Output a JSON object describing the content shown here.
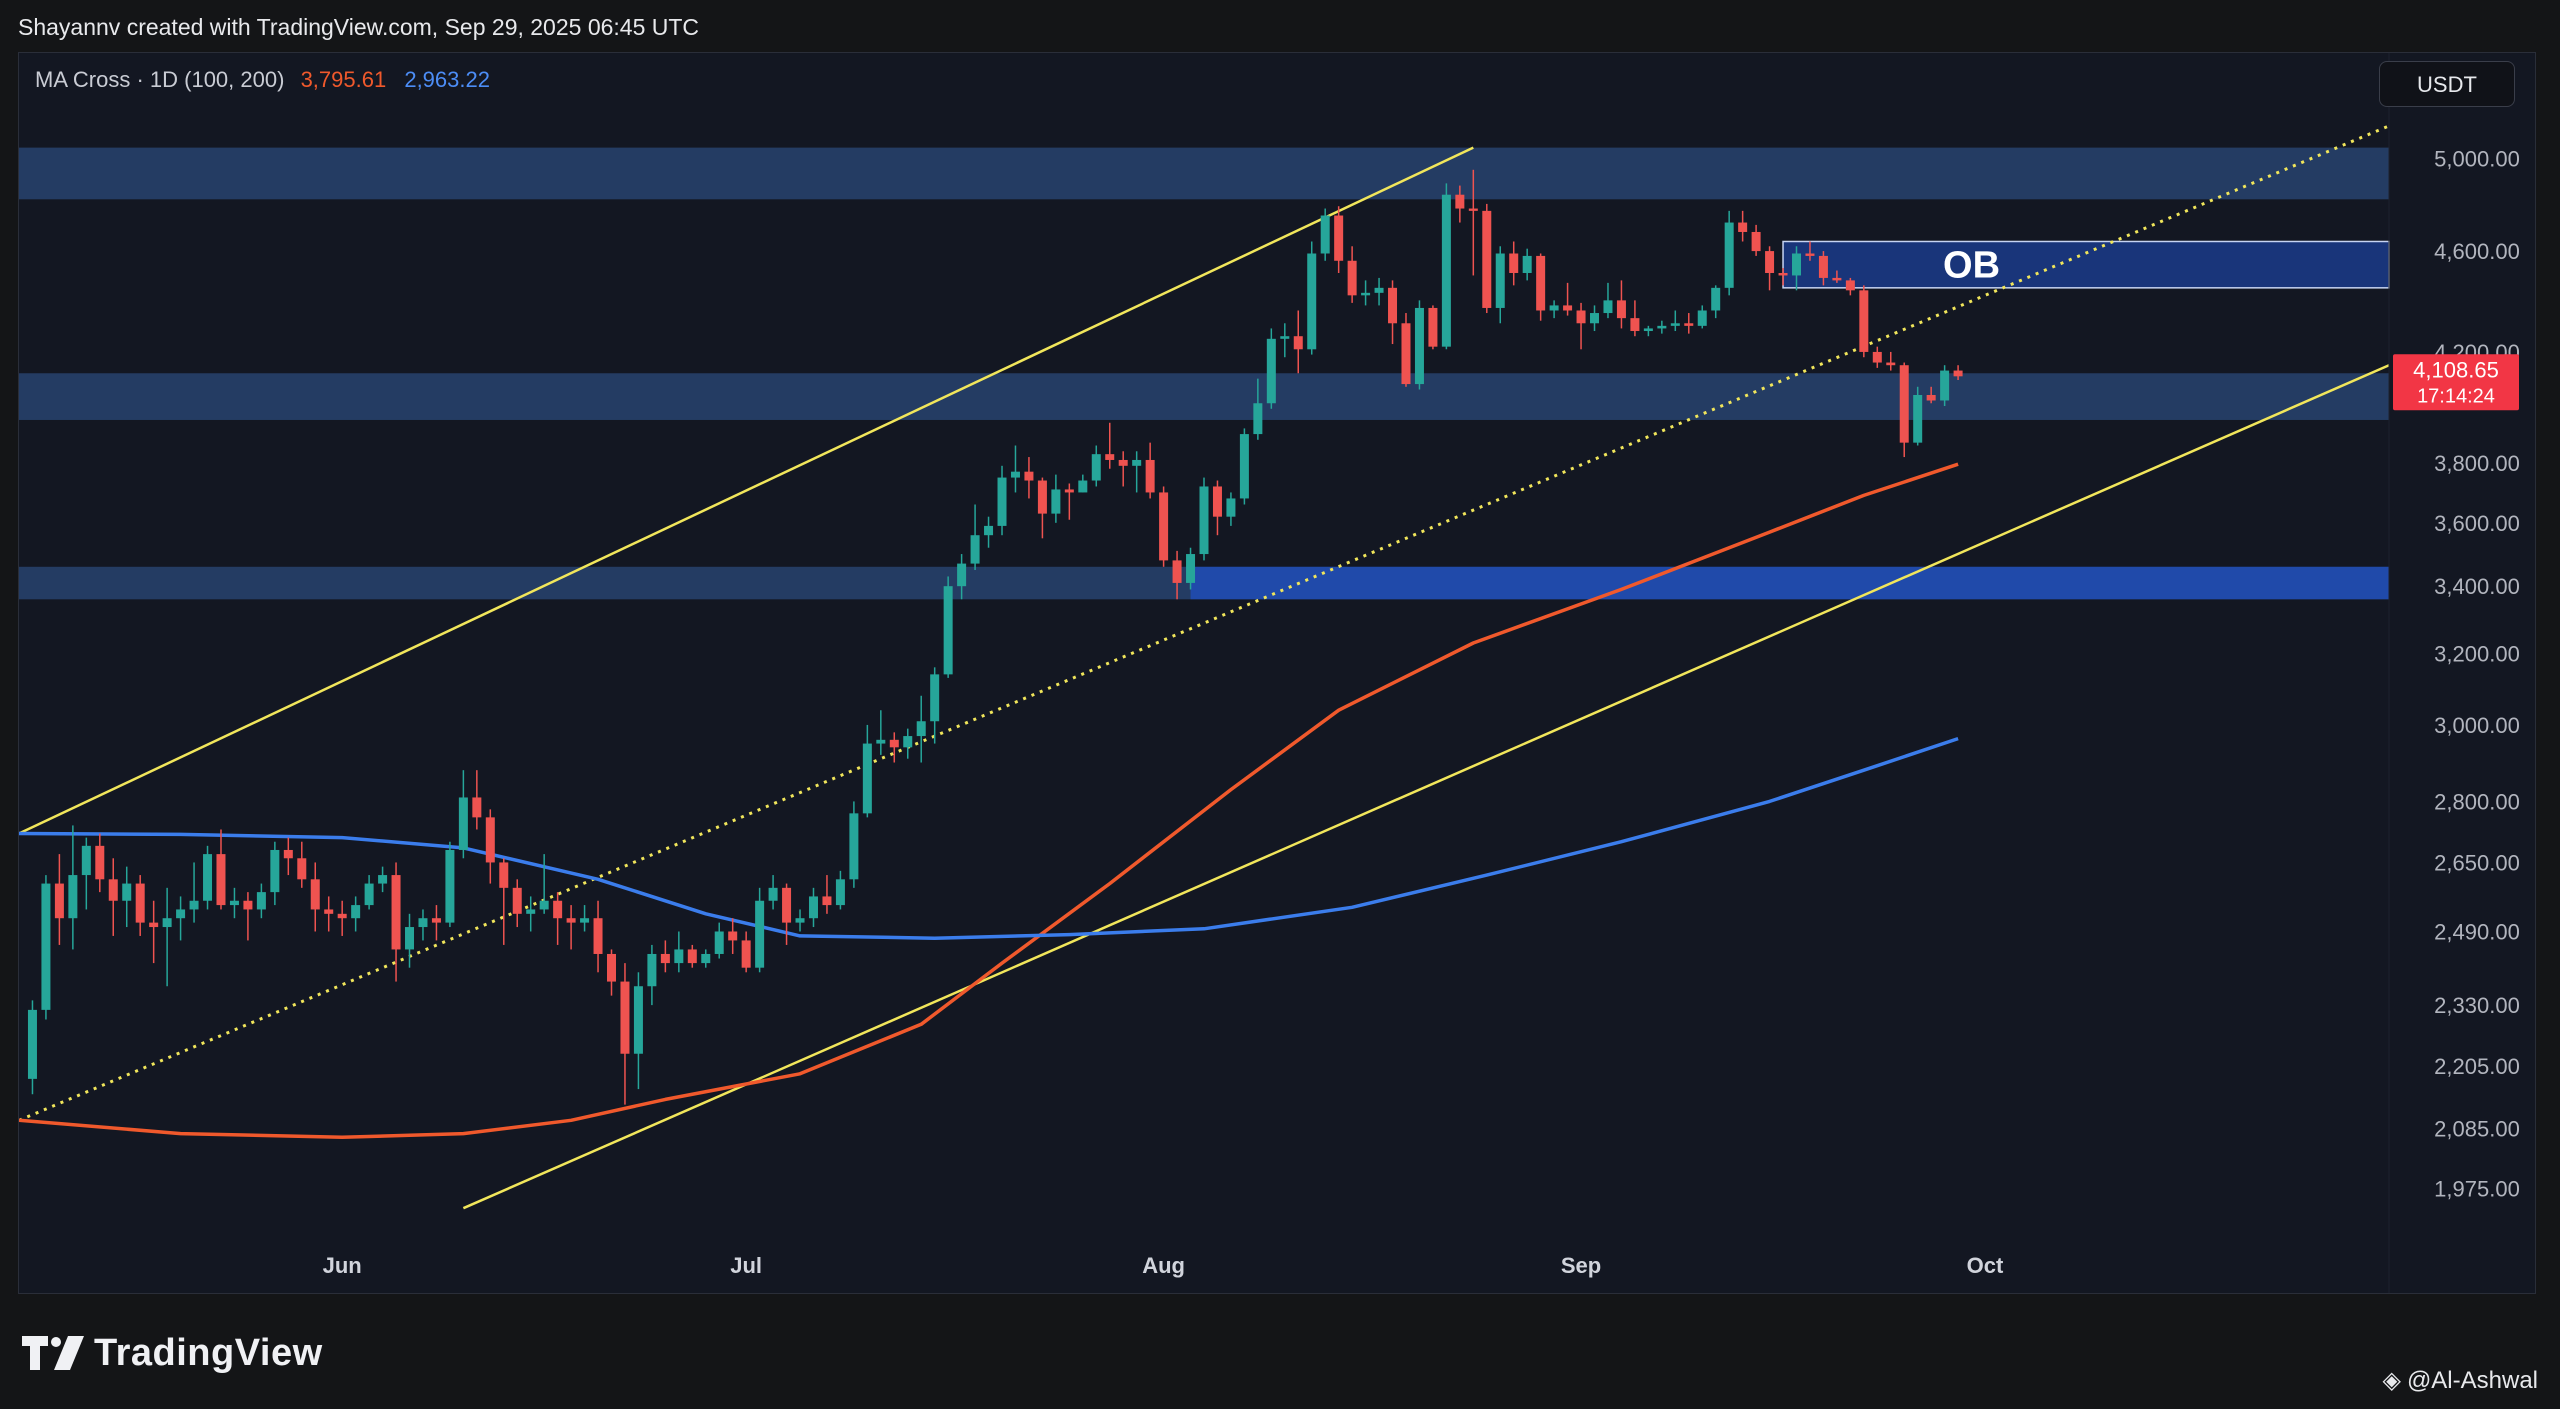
{
  "header": {
    "credit": "Shayannv created with TradingView.com, Sep 29, 2025 06:45 UTC"
  },
  "legend": {
    "label": "MA Cross · 1D (100, 200)",
    "ma100_value": "3,795.61",
    "ma200_value": "2,963.22"
  },
  "currency_button": "USDT",
  "footer": {
    "brand": "TradingView",
    "author": "@Al-Ashwal"
  },
  "colors": {
    "background": "#131722",
    "bull": "#26a69a",
    "bear": "#ef5350",
    "ma100": "#f0592c",
    "ma200": "#3b7dec",
    "channel": "#f1e65b",
    "zone": "#2b4a7a",
    "ob_zone": "#1f4fc2"
  },
  "chart_data": {
    "type": "candlestick",
    "symbol_currency": "USDT",
    "timeframe": "1D",
    "x_ticks": [
      "Jun",
      "Jul",
      "Aug",
      "Sep",
      "Oct"
    ],
    "y_ticks": [
      "5,000.00",
      "4,600.00",
      "4,200.00",
      "3,800.00",
      "3,600.00",
      "3,400.00",
      "3,200.00",
      "3,000.00",
      "2,800.00",
      "2,650.00",
      "2,490.00",
      "2,330.00",
      "2,205.00",
      "2,085.00",
      "1,975.00"
    ],
    "y_scale": "log",
    "y_range": [
      1880,
      5500
    ],
    "x_range": [
      "2025-05-08",
      "2025-10-31"
    ],
    "last_price": {
      "value": "4,108.65",
      "countdown": "17:14:24"
    },
    "candles": [
      [
        "2025-05-09",
        2180,
        2340,
        2150,
        2320
      ],
      [
        "2025-05-10",
        2320,
        2620,
        2300,
        2600
      ],
      [
        "2025-05-11",
        2600,
        2670,
        2460,
        2520
      ],
      [
        "2025-05-12",
        2520,
        2740,
        2450,
        2620
      ],
      [
        "2025-05-13",
        2620,
        2710,
        2540,
        2690
      ],
      [
        "2025-05-14",
        2690,
        2720,
        2580,
        2610
      ],
      [
        "2025-05-15",
        2610,
        2660,
        2480,
        2560
      ],
      [
        "2025-05-16",
        2560,
        2640,
        2500,
        2600
      ],
      [
        "2025-05-17",
        2600,
        2620,
        2480,
        2510
      ],
      [
        "2025-05-18",
        2510,
        2560,
        2420,
        2500
      ],
      [
        "2025-05-19",
        2500,
        2590,
        2370,
        2520
      ],
      [
        "2025-05-20",
        2520,
        2570,
        2470,
        2540
      ],
      [
        "2025-05-21",
        2540,
        2650,
        2510,
        2560
      ],
      [
        "2025-05-22",
        2560,
        2690,
        2540,
        2670
      ],
      [
        "2025-05-23",
        2670,
        2730,
        2540,
        2550
      ],
      [
        "2025-05-24",
        2550,
        2590,
        2520,
        2560
      ],
      [
        "2025-05-25",
        2560,
        2580,
        2470,
        2540
      ],
      [
        "2025-05-26",
        2540,
        2600,
        2520,
        2580
      ],
      [
        "2025-05-27",
        2580,
        2700,
        2550,
        2680
      ],
      [
        "2025-05-28",
        2680,
        2710,
        2620,
        2660
      ],
      [
        "2025-05-29",
        2660,
        2700,
        2590,
        2610
      ],
      [
        "2025-05-30",
        2610,
        2650,
        2490,
        2540
      ],
      [
        "2025-05-31",
        2540,
        2570,
        2490,
        2530
      ],
      [
        "2025-06-01",
        2530,
        2560,
        2480,
        2520
      ],
      [
        "2025-06-02",
        2520,
        2570,
        2490,
        2550
      ],
      [
        "2025-06-03",
        2550,
        2620,
        2540,
        2600
      ],
      [
        "2025-06-04",
        2600,
        2640,
        2580,
        2620
      ],
      [
        "2025-06-05",
        2620,
        2650,
        2380,
        2450
      ],
      [
        "2025-06-06",
        2450,
        2530,
        2410,
        2500
      ],
      [
        "2025-06-07",
        2500,
        2540,
        2470,
        2520
      ],
      [
        "2025-06-08",
        2520,
        2550,
        2470,
        2510
      ],
      [
        "2025-06-09",
        2510,
        2700,
        2500,
        2680
      ],
      [
        "2025-06-10",
        2680,
        2880,
        2660,
        2810
      ],
      [
        "2025-06-11",
        2810,
        2880,
        2730,
        2760
      ],
      [
        "2025-06-12",
        2760,
        2780,
        2600,
        2650
      ],
      [
        "2025-06-13",
        2650,
        2660,
        2460,
        2590
      ],
      [
        "2025-06-14",
        2590,
        2610,
        2500,
        2530
      ],
      [
        "2025-06-15",
        2530,
        2570,
        2490,
        2540
      ],
      [
        "2025-06-16",
        2540,
        2670,
        2530,
        2560
      ],
      [
        "2025-06-17",
        2560,
        2580,
        2460,
        2520
      ],
      [
        "2025-06-18",
        2520,
        2550,
        2450,
        2510
      ],
      [
        "2025-06-19",
        2510,
        2550,
        2490,
        2520
      ],
      [
        "2025-06-20",
        2520,
        2560,
        2400,
        2440
      ],
      [
        "2025-06-21",
        2440,
        2450,
        2350,
        2380
      ],
      [
        "2025-06-22",
        2380,
        2420,
        2130,
        2230
      ],
      [
        "2025-06-23",
        2230,
        2400,
        2160,
        2370
      ],
      [
        "2025-06-24",
        2370,
        2460,
        2330,
        2440
      ],
      [
        "2025-06-25",
        2440,
        2470,
        2400,
        2420
      ],
      [
        "2025-06-26",
        2420,
        2490,
        2400,
        2450
      ],
      [
        "2025-06-27",
        2450,
        2460,
        2410,
        2420
      ],
      [
        "2025-06-28",
        2420,
        2450,
        2410,
        2440
      ],
      [
        "2025-06-29",
        2440,
        2510,
        2430,
        2490
      ],
      [
        "2025-06-30",
        2490,
        2520,
        2440,
        2470
      ],
      [
        "2025-07-01",
        2470,
        2490,
        2400,
        2410
      ],
      [
        "2025-07-02",
        2410,
        2590,
        2400,
        2560
      ],
      [
        "2025-07-03",
        2560,
        2620,
        2540,
        2590
      ],
      [
        "2025-07-04",
        2590,
        2600,
        2460,
        2510
      ],
      [
        "2025-07-05",
        2510,
        2540,
        2490,
        2520
      ],
      [
        "2025-07-06",
        2520,
        2590,
        2500,
        2570
      ],
      [
        "2025-07-07",
        2570,
        2620,
        2530,
        2550
      ],
      [
        "2025-07-08",
        2550,
        2630,
        2540,
        2610
      ],
      [
        "2025-07-09",
        2610,
        2800,
        2590,
        2770
      ],
      [
        "2025-07-10",
        2770,
        3000,
        2760,
        2950
      ],
      [
        "2025-07-11",
        2950,
        3040,
        2920,
        2960
      ],
      [
        "2025-07-12",
        2960,
        2980,
        2900,
        2940
      ],
      [
        "2025-07-13",
        2940,
        2990,
        2910,
        2970
      ],
      [
        "2025-07-14",
        2970,
        3080,
        2900,
        3010
      ],
      [
        "2025-07-15",
        3010,
        3160,
        2950,
        3140
      ],
      [
        "2025-07-16",
        3140,
        3430,
        3130,
        3400
      ],
      [
        "2025-07-17",
        3400,
        3500,
        3360,
        3470
      ],
      [
        "2025-07-18",
        3470,
        3660,
        3450,
        3560
      ],
      [
        "2025-07-19",
        3560,
        3620,
        3520,
        3590
      ],
      [
        "2025-07-20",
        3590,
        3790,
        3560,
        3750
      ],
      [
        "2025-07-21",
        3750,
        3860,
        3700,
        3770
      ],
      [
        "2025-07-22",
        3770,
        3820,
        3680,
        3740
      ],
      [
        "2025-07-23",
        3740,
        3750,
        3550,
        3630
      ],
      [
        "2025-07-24",
        3630,
        3760,
        3600,
        3710
      ],
      [
        "2025-07-25",
        3710,
        3730,
        3610,
        3700
      ],
      [
        "2025-07-26",
        3700,
        3760,
        3700,
        3740
      ],
      [
        "2025-07-27",
        3740,
        3860,
        3720,
        3830
      ],
      [
        "2025-07-28",
        3830,
        3940,
        3780,
        3810
      ],
      [
        "2025-07-29",
        3810,
        3840,
        3720,
        3790
      ],
      [
        "2025-07-30",
        3790,
        3840,
        3700,
        3810
      ],
      [
        "2025-07-31",
        3810,
        3870,
        3680,
        3700
      ],
      [
        "2025-08-01",
        3700,
        3720,
        3460,
        3480
      ],
      [
        "2025-08-02",
        3480,
        3510,
        3360,
        3410
      ],
      [
        "2025-08-03",
        3410,
        3520,
        3390,
        3500
      ],
      [
        "2025-08-04",
        3500,
        3750,
        3480,
        3720
      ],
      [
        "2025-08-05",
        3720,
        3740,
        3560,
        3620
      ],
      [
        "2025-08-06",
        3620,
        3700,
        3590,
        3680
      ],
      [
        "2025-08-07",
        3680,
        3920,
        3660,
        3900
      ],
      [
        "2025-08-08",
        3900,
        4100,
        3880,
        4010
      ],
      [
        "2025-08-09",
        4010,
        4290,
        3990,
        4250
      ],
      [
        "2025-08-10",
        4250,
        4310,
        4180,
        4260
      ],
      [
        "2025-08-11",
        4260,
        4360,
        4120,
        4210
      ],
      [
        "2025-08-12",
        4210,
        4640,
        4190,
        4590
      ],
      [
        "2025-08-13",
        4590,
        4780,
        4560,
        4750
      ],
      [
        "2025-08-14",
        4750,
        4790,
        4510,
        4560
      ],
      [
        "2025-08-15",
        4560,
        4620,
        4390,
        4420
      ],
      [
        "2025-08-16",
        4420,
        4480,
        4380,
        4430
      ],
      [
        "2025-08-17",
        4430,
        4490,
        4380,
        4450
      ],
      [
        "2025-08-18",
        4450,
        4480,
        4230,
        4310
      ],
      [
        "2025-08-19",
        4310,
        4350,
        4070,
        4080
      ],
      [
        "2025-08-20",
        4080,
        4400,
        4060,
        4370
      ],
      [
        "2025-08-21",
        4370,
        4380,
        4210,
        4220
      ],
      [
        "2025-08-22",
        4220,
        4890,
        4210,
        4840
      ],
      [
        "2025-08-23",
        4840,
        4880,
        4720,
        4780
      ],
      [
        "2025-08-24",
        4780,
        4950,
        4500,
        4770
      ],
      [
        "2025-08-25",
        4770,
        4800,
        4350,
        4370
      ],
      [
        "2025-08-26",
        4370,
        4620,
        4310,
        4590
      ],
      [
        "2025-08-27",
        4590,
        4640,
        4460,
        4510
      ],
      [
        "2025-08-28",
        4510,
        4610,
        4480,
        4580
      ],
      [
        "2025-08-29",
        4580,
        4590,
        4320,
        4360
      ],
      [
        "2025-08-30",
        4360,
        4400,
        4330,
        4380
      ],
      [
        "2025-08-31",
        4380,
        4470,
        4340,
        4360
      ],
      [
        "2025-09-01",
        4360,
        4390,
        4210,
        4310
      ],
      [
        "2025-09-02",
        4310,
        4380,
        4280,
        4350
      ],
      [
        "2025-09-03",
        4350,
        4470,
        4330,
        4400
      ],
      [
        "2025-09-04",
        4400,
        4480,
        4290,
        4330
      ],
      [
        "2025-09-05",
        4330,
        4400,
        4260,
        4280
      ],
      [
        "2025-09-06",
        4280,
        4300,
        4260,
        4290
      ],
      [
        "2025-09-07",
        4290,
        4320,
        4270,
        4300
      ],
      [
        "2025-09-08",
        4300,
        4360,
        4280,
        4310
      ],
      [
        "2025-09-09",
        4310,
        4350,
        4270,
        4300
      ],
      [
        "2025-09-10",
        4300,
        4380,
        4290,
        4360
      ],
      [
        "2025-09-11",
        4360,
        4460,
        4330,
        4450
      ],
      [
        "2025-09-12",
        4450,
        4770,
        4420,
        4720
      ],
      [
        "2025-09-13",
        4720,
        4770,
        4640,
        4680
      ],
      [
        "2025-09-14",
        4680,
        4710,
        4580,
        4600
      ],
      [
        "2025-09-15",
        4600,
        4620,
        4440,
        4510
      ],
      [
        "2025-09-16",
        4510,
        4530,
        4460,
        4500
      ],
      [
        "2025-09-17",
        4500,
        4620,
        4440,
        4590
      ],
      [
        "2025-09-18",
        4590,
        4640,
        4560,
        4580
      ],
      [
        "2025-09-19",
        4580,
        4600,
        4460,
        4490
      ],
      [
        "2025-09-20",
        4490,
        4520,
        4470,
        4480
      ],
      [
        "2025-09-21",
        4480,
        4490,
        4420,
        4440
      ],
      [
        "2025-09-22",
        4440,
        4460,
        4180,
        4200
      ],
      [
        "2025-09-23",
        4200,
        4220,
        4140,
        4160
      ],
      [
        "2025-09-24",
        4160,
        4200,
        4130,
        4150
      ],
      [
        "2025-09-25",
        4150,
        4160,
        3820,
        3870
      ],
      [
        "2025-09-26",
        3870,
        4070,
        3860,
        4040
      ],
      [
        "2025-09-27",
        4040,
        4070,
        4010,
        4020
      ],
      [
        "2025-09-28",
        4020,
        4150,
        4000,
        4130
      ],
      [
        "2025-09-29",
        4130,
        4150,
        4095,
        4108.65
      ]
    ],
    "series": [
      {
        "name": "MA 100",
        "color": "#f0592c",
        "points": [
          [
            "2025-05-08",
            2100
          ],
          [
            "2025-05-20",
            2075
          ],
          [
            "2025-06-01",
            2068
          ],
          [
            "2025-06-10",
            2075
          ],
          [
            "2025-06-18",
            2100
          ],
          [
            "2025-06-25",
            2140
          ],
          [
            "2025-07-05",
            2190
          ],
          [
            "2025-07-14",
            2290
          ],
          [
            "2025-07-20",
            2420
          ],
          [
            "2025-07-28",
            2600
          ],
          [
            "2025-08-06",
            2830
          ],
          [
            "2025-08-14",
            3040
          ],
          [
            "2025-08-24",
            3230
          ],
          [
            "2025-09-04",
            3390
          ],
          [
            "2025-09-15",
            3570
          ],
          [
            "2025-09-22",
            3690
          ],
          [
            "2025-09-29",
            3795.61
          ]
        ]
      },
      {
        "name": "MA 200",
        "color": "#3b7dec",
        "points": [
          [
            "2025-05-08",
            2720
          ],
          [
            "2025-05-20",
            2718
          ],
          [
            "2025-06-01",
            2710
          ],
          [
            "2025-06-10",
            2685
          ],
          [
            "2025-06-20",
            2610
          ],
          [
            "2025-06-28",
            2530
          ],
          [
            "2025-07-05",
            2480
          ],
          [
            "2025-07-15",
            2475
          ],
          [
            "2025-07-25",
            2483
          ],
          [
            "2025-08-04",
            2496
          ],
          [
            "2025-08-15",
            2545
          ],
          [
            "2025-08-25",
            2620
          ],
          [
            "2025-09-04",
            2700
          ],
          [
            "2025-09-15",
            2800
          ],
          [
            "2025-09-22",
            2880
          ],
          [
            "2025-09-29",
            2963.22
          ]
        ]
      }
    ],
    "annotations": [
      {
        "type": "zone",
        "y": [
          4820,
          5050
        ]
      },
      {
        "type": "zone",
        "y": [
          3950,
          4120
        ]
      },
      {
        "type": "zone",
        "y": [
          3360,
          3460
        ]
      },
      {
        "type": "zone",
        "y": [
          3360,
          3460
        ],
        "x": [
          "2025-08-03",
          "2025-10-31"
        ],
        "highlight": true
      },
      {
        "type": "zone",
        "label": "OB",
        "y": [
          4450,
          4640
        ],
        "x": [
          "2025-09-16",
          "2025-10-31"
        ],
        "highlight": true
      },
      {
        "type": "line",
        "style": "solid",
        "from": [
          "2025-05-08",
          2720
        ],
        "to": [
          "2025-08-24",
          5050
        ]
      },
      {
        "type": "line",
        "style": "solid",
        "from": [
          "2025-06-10",
          1940
        ],
        "to": [
          "2025-10-31",
          4150
        ]
      },
      {
        "type": "line",
        "style": "dotted",
        "from": [
          "2025-05-08",
          2100
        ],
        "to": [
          "2025-10-31",
          5150
        ]
      }
    ]
  }
}
